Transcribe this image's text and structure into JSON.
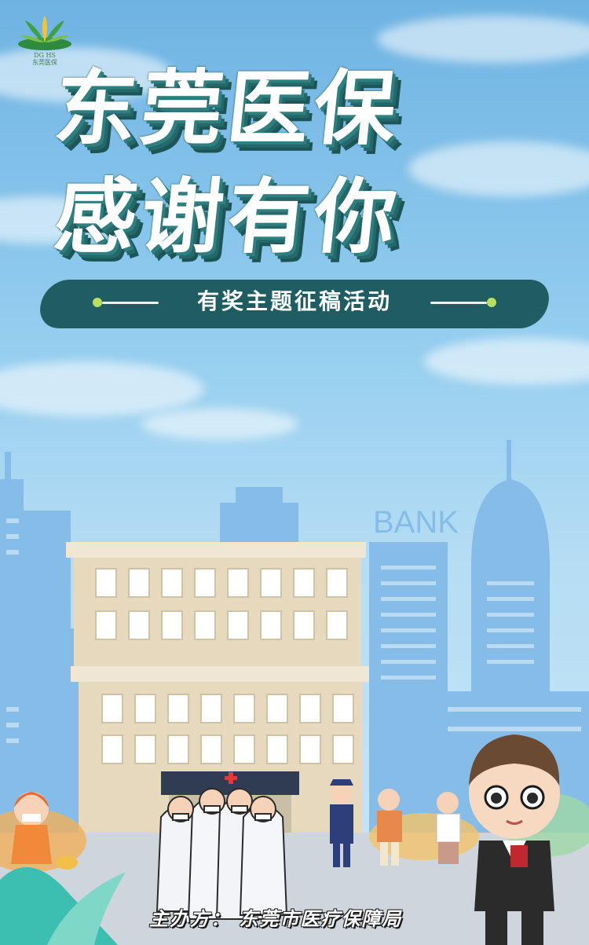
{
  "logo": {
    "subtitle_en": "DG HS",
    "subtitle_cn": "东莞医保"
  },
  "title": {
    "line1": "东莞医保",
    "line2": "感谢有你"
  },
  "subtitle": "有奖主题征稿活动",
  "building_sign": "BANK",
  "organizer": "主办方：  东莞市医疗保障局",
  "colors": {
    "sky": "#93cdef",
    "title_shadow": "#24686a",
    "banner": "#1f5d62",
    "accent_green": "#b7e063"
  }
}
